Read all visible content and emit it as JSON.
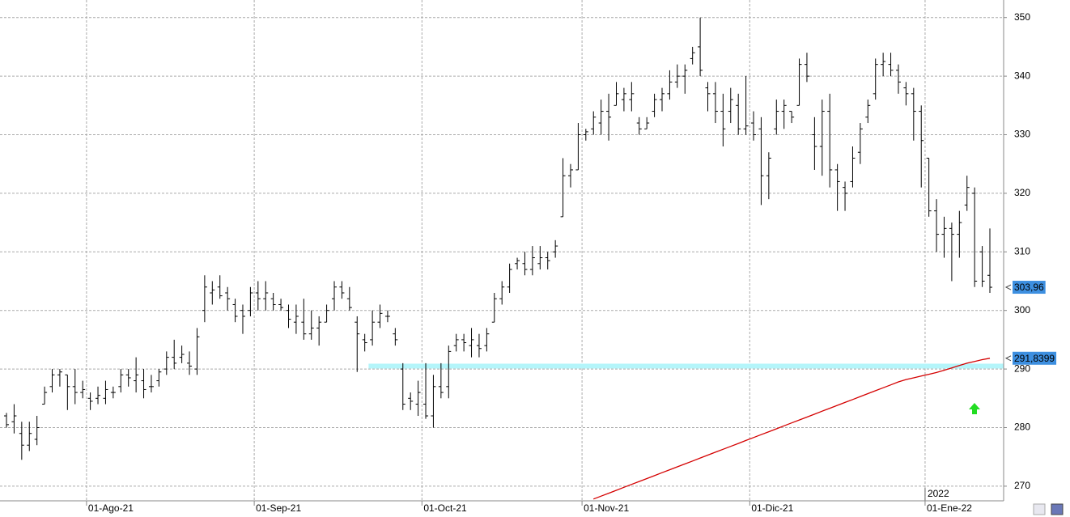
{
  "chart_data": {
    "type": "ohlc",
    "x": [
      "2021-07-16",
      "2021-07-19",
      "2021-07-20",
      "2021-07-21",
      "2021-07-22",
      "2021-07-23",
      "2021-07-26",
      "2021-07-27",
      "2021-07-28",
      "2021-07-29",
      "2021-07-30",
      "2021-08-02",
      "2021-08-03",
      "2021-08-04",
      "2021-08-05",
      "2021-08-06",
      "2021-08-09",
      "2021-08-10",
      "2021-08-11",
      "2021-08-12",
      "2021-08-13",
      "2021-08-16",
      "2021-08-17",
      "2021-08-18",
      "2021-08-19",
      "2021-08-20",
      "2021-08-23",
      "2021-08-24",
      "2021-08-25",
      "2021-08-26",
      "2021-08-27",
      "2021-08-30",
      "2021-08-31",
      "2021-09-01",
      "2021-09-02",
      "2021-09-03",
      "2021-09-06",
      "2021-09-07",
      "2021-09-08",
      "2021-09-09",
      "2021-09-10",
      "2021-09-13",
      "2021-09-14",
      "2021-09-15",
      "2021-09-16",
      "2021-09-17",
      "2021-09-20",
      "2021-09-21",
      "2021-09-22",
      "2021-09-23",
      "2021-09-24",
      "2021-09-27",
      "2021-09-28",
      "2021-09-29",
      "2021-09-30",
      "2021-10-01",
      "2021-10-04",
      "2021-10-05",
      "2021-10-06",
      "2021-10-07",
      "2021-10-08",
      "2021-10-11",
      "2021-10-12",
      "2021-10-13",
      "2021-10-14",
      "2021-10-15",
      "2021-10-18",
      "2021-10-19",
      "2021-10-20",
      "2021-10-21",
      "2021-10-22",
      "2021-10-25",
      "2021-10-26",
      "2021-10-27",
      "2021-10-28",
      "2021-10-29",
      "2021-11-01",
      "2021-11-02",
      "2021-11-03",
      "2021-11-04",
      "2021-11-05",
      "2021-11-08",
      "2021-11-09",
      "2021-11-10",
      "2021-11-11",
      "2021-11-12",
      "2021-11-15",
      "2021-11-16",
      "2021-11-17",
      "2021-11-18",
      "2021-11-19",
      "2021-11-22",
      "2021-11-23",
      "2021-11-24",
      "2021-11-25",
      "2021-11-26",
      "2021-11-29",
      "2021-11-30",
      "2021-12-01",
      "2021-12-02",
      "2021-12-03",
      "2021-12-06",
      "2021-12-07",
      "2021-12-08",
      "2021-12-09",
      "2021-12-10",
      "2021-12-13",
      "2021-12-14",
      "2021-12-15",
      "2021-12-16",
      "2021-12-17",
      "2021-12-20",
      "2021-12-21",
      "2021-12-22",
      "2021-12-23",
      "2021-12-24",
      "2021-12-27",
      "2021-12-28",
      "2021-12-29",
      "2021-12-30",
      "2021-12-31",
      "2022-01-03",
      "2022-01-04",
      "2022-01-05",
      "2022-01-06",
      "2022-01-07",
      "2022-01-10",
      "2022-01-11",
      "2022-01-12",
      "2022-01-13"
    ],
    "open": [
      282,
      281,
      279,
      277,
      278,
      284,
      287,
      289,
      289,
      287,
      286,
      285,
      285,
      285,
      286,
      287,
      289,
      288,
      288,
      287,
      288,
      290,
      292,
      292,
      291,
      290,
      300,
      303,
      304,
      303,
      301,
      300,
      300,
      303,
      302,
      302,
      301,
      300,
      298,
      298,
      296,
      297,
      298,
      302,
      304,
      302,
      298,
      295,
      295,
      298,
      299,
      296,
      290,
      285,
      284,
      284,
      282,
      287,
      287,
      294,
      295,
      294,
      294,
      294,
      298,
      302,
      304,
      308,
      308,
      307,
      308,
      309,
      310,
      316,
      323,
      324,
      330,
      331,
      332,
      334,
      335,
      336,
      336,
      332,
      331,
      334,
      336,
      337,
      339,
      340,
      343,
      345,
      338,
      337,
      334,
      334,
      335,
      331,
      332,
      331,
      323,
      331,
      334,
      334,
      335,
      342,
      330,
      328,
      334,
      324,
      321,
      322,
      327,
      333,
      337,
      342,
      342,
      341,
      338,
      337,
      334,
      326,
      317,
      313,
      314,
      313,
      318,
      320,
      310,
      306
    ],
    "high": [
      282.5,
      284,
      281,
      281,
      282,
      287,
      290,
      290,
      289,
      290,
      288,
      286,
      287,
      288,
      287,
      290,
      290,
      292,
      290,
      289,
      290,
      293,
      295,
      294,
      293,
      297,
      306,
      305,
      306,
      304,
      302,
      301,
      304,
      305,
      305,
      303,
      302,
      301,
      301,
      302,
      300,
      299,
      301,
      305,
      305,
      304,
      299,
      296,
      300,
      301,
      300,
      297,
      291,
      286,
      288,
      291,
      289,
      291,
      294,
      296,
      296,
      297,
      296,
      297,
      303,
      305,
      308,
      309,
      310,
      311,
      311,
      310,
      312,
      326,
      325,
      332,
      331,
      334,
      336,
      337,
      339,
      338,
      339,
      333,
      333,
      337,
      338,
      341,
      342,
      342,
      345,
      350,
      339,
      339,
      337,
      338,
      337,
      340,
      334,
      333,
      327,
      336,
      336,
      334,
      343,
      344,
      333,
      336,
      337,
      325,
      322,
      328,
      332,
      336,
      343,
      344,
      344,
      342,
      339,
      338,
      335,
      326,
      319,
      316,
      315,
      317,
      323,
      321,
      311,
      314
    ],
    "low": [
      280,
      279,
      274.5,
      276,
      277,
      284,
      286,
      287,
      283,
      284,
      285,
      283,
      284,
      284,
      285,
      286,
      287,
      286,
      285,
      286,
      287,
      289,
      290,
      291,
      289,
      289,
      298,
      301,
      302,
      300,
      298,
      296,
      299,
      300,
      300,
      300,
      300,
      297,
      296,
      295,
      295,
      294,
      298,
      300,
      302,
      300,
      289.5,
      293,
      294,
      297,
      298,
      294,
      283,
      283,
      282,
      281.5,
      280,
      285,
      285,
      293,
      293,
      292,
      292,
      293,
      298,
      301,
      303,
      307,
      306,
      306,
      307,
      307,
      309,
      316,
      321,
      324,
      329,
      330,
      330,
      329,
      335,
      334,
      334,
      330,
      331,
      333,
      334,
      336,
      338,
      337,
      342,
      340,
      334,
      332,
      328,
      332,
      330,
      330,
      329,
      318,
      319,
      330,
      331,
      332,
      335,
      339,
      324,
      323,
      321,
      317,
      317,
      321,
      325,
      332,
      336,
      340,
      340,
      337,
      335,
      329,
      321,
      316,
      310,
      309,
      305,
      309,
      317,
      304,
      304,
      303
    ],
    "close": [
      280.5,
      282,
      277,
      279,
      280,
      286,
      289,
      289.5,
      287,
      286,
      286.5,
      284.5,
      285.5,
      286.5,
      286,
      289,
      288.5,
      289,
      286.5,
      287,
      289.5,
      292,
      291,
      292.5,
      290.5,
      295.5,
      304,
      303.5,
      302.5,
      302,
      299,
      299,
      303,
      302,
      303,
      301,
      300.5,
      298.5,
      299,
      296,
      297,
      298,
      300,
      304,
      303,
      300.5,
      296,
      294.5,
      298,
      299.5,
      299,
      295,
      284,
      284.5,
      286,
      282,
      287,
      286,
      293,
      295,
      294.5,
      295,
      293.5,
      296,
      302,
      304,
      307,
      308.5,
      307,
      309,
      309,
      308.5,
      311,
      323,
      324,
      330,
      330.5,
      333,
      334,
      333,
      337,
      337,
      337,
      331,
      332,
      336,
      337,
      339,
      340,
      341,
      344,
      341,
      337,
      334,
      331,
      336,
      331,
      331.5,
      330,
      323,
      326,
      334,
      335,
      333,
      342,
      340,
      328,
      334,
      324,
      322,
      320,
      326,
      331,
      335,
      342,
      342.5,
      341,
      339,
      337,
      334,
      329,
      317,
      313,
      314,
      313,
      315,
      321,
      305,
      305,
      303.96
    ],
    "color": "#000000",
    "ma": {
      "color": "#d40000",
      "values": [
        null,
        null,
        null,
        null,
        null,
        null,
        null,
        null,
        null,
        null,
        null,
        null,
        null,
        null,
        null,
        null,
        null,
        null,
        null,
        null,
        null,
        null,
        null,
        null,
        null,
        null,
        null,
        null,
        null,
        null,
        null,
        null,
        null,
        null,
        null,
        null,
        null,
        null,
        null,
        null,
        null,
        null,
        null,
        null,
        null,
        null,
        null,
        null,
        null,
        null,
        null,
        null,
        null,
        null,
        null,
        null,
        null,
        null,
        null,
        null,
        null,
        null,
        null,
        null,
        null,
        null,
        null,
        null,
        null,
        null,
        null,
        null,
        null,
        null,
        null,
        null,
        null,
        267.8,
        268.3,
        268.8,
        269.3,
        269.8,
        270.3,
        270.8,
        271.3,
        271.8,
        272.3,
        272.8,
        273.3,
        273.8,
        274.3,
        274.8,
        275.3,
        275.8,
        276.3,
        276.8,
        277.3,
        277.8,
        278.3,
        278.8,
        279.3,
        279.8,
        280.3,
        280.8,
        281.3,
        281.8,
        282.3,
        282.8,
        283.3,
        283.8,
        284.3,
        284.8,
        285.3,
        285.8,
        286.3,
        286.8,
        287.3,
        287.8,
        288.2,
        288.5,
        288.8,
        289.1,
        289.4,
        289.8,
        290.2,
        290.6,
        291.0,
        291.3,
        291.6,
        291.8399
      ]
    },
    "last_labels": {
      "close": "303,96",
      "ma": "291,8399",
      "color": "#3d8fe0"
    },
    "hlines": [
      {
        "value": 290.5,
        "from": "2021-09-22",
        "color": "#b4f5fa"
      }
    ],
    "ylim": [
      267.5,
      353
    ],
    "yticks": [
      270,
      280,
      290,
      300,
      310,
      320,
      330,
      340,
      350
    ],
    "xticks": [
      {
        "value": "2021-08-01",
        "label": "01-Ago-21"
      },
      {
        "value": "2021-09-01",
        "label": "01-Sep-21"
      },
      {
        "value": "2021-10-01",
        "label": "01-Oct-21"
      },
      {
        "value": "2021-11-01",
        "label": "01-Nov-21"
      },
      {
        "value": "2021-12-01",
        "label": "01-Dic-21"
      },
      {
        "value": "2022-01-01",
        "label": "01-Ene-22"
      }
    ],
    "year_marker": {
      "value": "2022-01-01",
      "label": "2022"
    },
    "grid": true
  }
}
